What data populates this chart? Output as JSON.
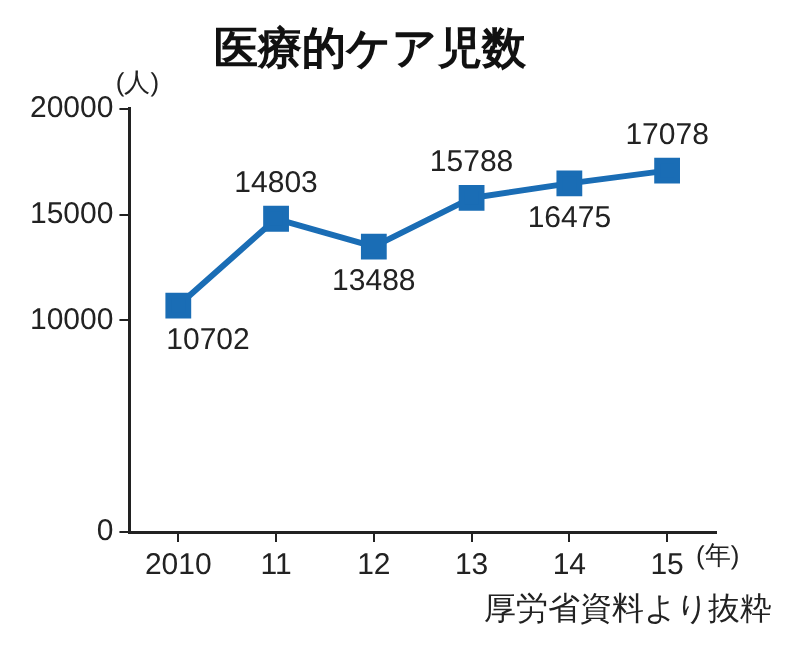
{
  "chart_data": {
    "type": "line",
    "title": "医療的ケア児数",
    "ylabel": "(人)",
    "xlabel": "(年)",
    "categories": [
      "2010",
      "11",
      "12",
      "13",
      "14",
      "15"
    ],
    "series": [
      {
        "color": "#1a6db5",
        "values": [
          10702,
          14803,
          13488,
          15788,
          16475,
          17078
        ]
      }
    ],
    "ylim": [
      0,
      20000
    ],
    "yticks": [
      0,
      10000,
      15000,
      20000
    ],
    "annotations": [
      "厚労省資料より抜粋"
    ],
    "data_labels": true,
    "marker": "square",
    "line_style": "solid",
    "grid": false,
    "legend": false
  }
}
